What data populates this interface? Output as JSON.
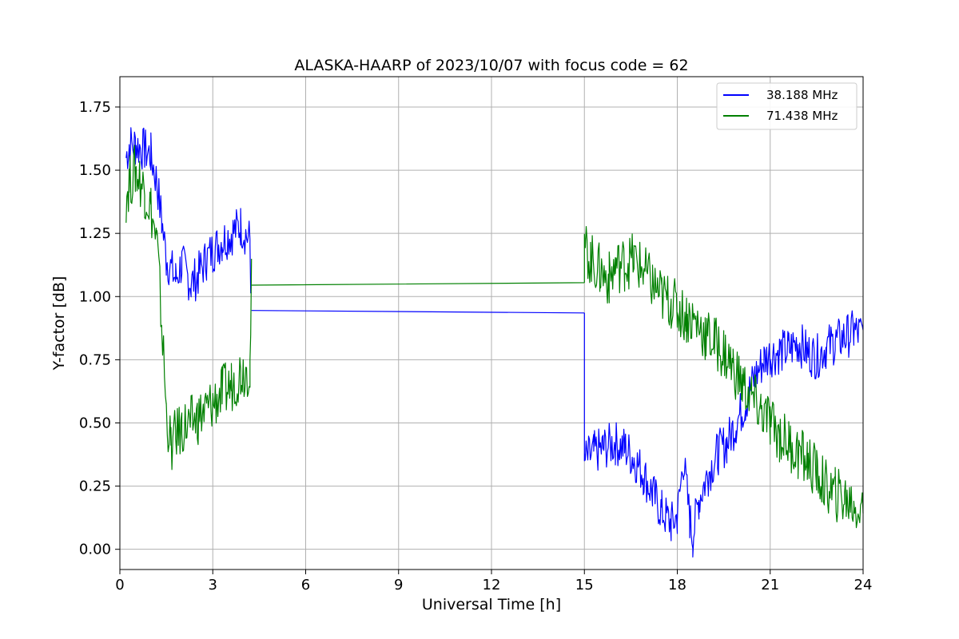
{
  "chart_data": {
    "type": "line",
    "title": "ALASKA-HAARP of 2023/10/07 with focus code = 62",
    "xlabel": "Universal Time [h]",
    "ylabel": "Y-factor [dB]",
    "xlim": [
      0,
      24
    ],
    "ylim": [
      -0.08,
      1.87
    ],
    "xticks": [
      0,
      3,
      6,
      9,
      12,
      15,
      18,
      21,
      24
    ],
    "xtick_labels": [
      "0",
      "3",
      "6",
      "9",
      "12",
      "15",
      "18",
      "21",
      "24"
    ],
    "yticks": [
      0.0,
      0.25,
      0.5,
      0.75,
      1.0,
      1.25,
      1.5,
      1.75
    ],
    "ytick_labels": [
      "0.00",
      "0.25",
      "0.50",
      "0.75",
      "1.00",
      "1.25",
      "1.50",
      "1.75"
    ],
    "grid": true,
    "legend_position": "top-right",
    "series": [
      {
        "name": "38.188 MHz",
        "color": "#0000ff",
        "x": [
          0.2,
          0.3,
          0.5,
          0.8,
          1.0,
          1.2,
          1.35,
          1.5,
          1.8,
          2.0,
          2.3,
          2.5,
          2.8,
          3.0,
          3.3,
          3.6,
          3.9,
          4.2,
          4.25,
          15.0,
          15.0,
          15.3,
          15.6,
          16.0,
          16.3,
          16.6,
          16.9,
          17.2,
          17.5,
          17.8,
          18.0,
          18.2,
          18.4,
          18.5,
          18.7,
          19.0,
          19.3,
          19.6,
          19.9,
          20.2,
          20.5,
          20.8,
          21.0,
          21.3,
          21.6,
          21.9,
          22.2,
          22.5,
          22.8,
          23.1,
          23.4,
          23.7,
          24.0
        ],
        "y": [
          1.55,
          1.6,
          1.6,
          1.58,
          1.56,
          1.45,
          1.3,
          1.15,
          1.07,
          1.13,
          1.05,
          1.08,
          1.15,
          1.18,
          1.22,
          1.25,
          1.28,
          1.22,
          0.945,
          0.935,
          0.35,
          0.38,
          0.4,
          0.42,
          0.4,
          0.36,
          0.3,
          0.22,
          0.15,
          0.1,
          0.13,
          0.35,
          0.12,
          0.05,
          0.2,
          0.3,
          0.38,
          0.42,
          0.5,
          0.58,
          0.68,
          0.75,
          0.77,
          0.78,
          0.79,
          0.82,
          0.78,
          0.76,
          0.8,
          0.82,
          0.84,
          0.86,
          0.85
        ]
      },
      {
        "name": "71.438 MHz",
        "color": "#008000",
        "x": [
          0.2,
          0.3,
          0.5,
          0.8,
          1.0,
          1.2,
          1.35,
          1.5,
          1.65,
          1.8,
          2.0,
          2.3,
          2.5,
          2.8,
          3.0,
          3.3,
          3.6,
          3.9,
          4.2,
          4.25,
          15.0,
          15.0,
          15.2,
          15.5,
          15.8,
          16.0,
          16.3,
          16.6,
          16.9,
          17.2,
          17.5,
          17.8,
          18.0,
          18.3,
          18.6,
          18.9,
          19.2,
          19.5,
          19.8,
          20.1,
          20.4,
          20.7,
          21.0,
          21.3,
          21.6,
          21.9,
          22.2,
          22.5,
          22.8,
          23.1,
          23.4,
          23.7,
          24.0
        ],
        "y": [
          1.4,
          1.45,
          1.5,
          1.42,
          1.35,
          1.2,
          0.9,
          0.55,
          0.4,
          0.45,
          0.48,
          0.5,
          0.52,
          0.55,
          0.58,
          0.62,
          0.65,
          0.7,
          0.72,
          1.045,
          1.055,
          1.2,
          1.15,
          1.1,
          1.07,
          1.12,
          1.13,
          1.15,
          1.1,
          1.05,
          1.0,
          0.98,
          0.95,
          0.92,
          0.9,
          0.85,
          0.82,
          0.78,
          0.72,
          0.65,
          0.6,
          0.55,
          0.5,
          0.45,
          0.42,
          0.38,
          0.35,
          0.3,
          0.25,
          0.22,
          0.2,
          0.18,
          0.15
        ]
      }
    ]
  }
}
